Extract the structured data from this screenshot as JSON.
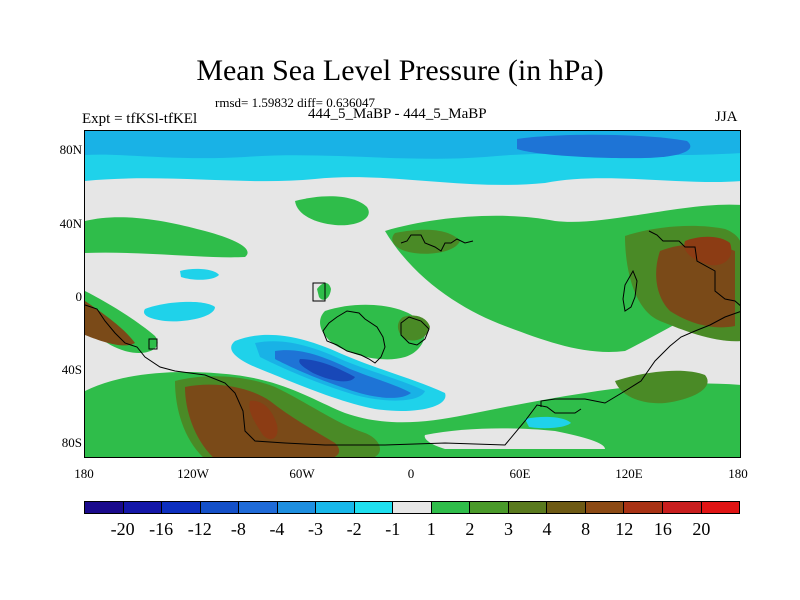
{
  "plot": {
    "title": "Mean Sea Level Pressure (in hPa)",
    "stats": "rmsd= 1.59832 diff= 0.636047",
    "experiment": "Expt = tfKSl-tfKEl",
    "runs": "444_5_MaBP - 444_5_MaBP",
    "season": "JJA"
  },
  "axes": {
    "y_labels": [
      "80N",
      "40N",
      "0",
      "40S",
      "80S"
    ],
    "x_labels": [
      "180",
      "120W",
      "60W",
      "0",
      "60E",
      "120E",
      "180"
    ]
  },
  "colorbar": {
    "labels": [
      "-20",
      "-16",
      "-12",
      "-8",
      "-4",
      "-3",
      "-2",
      "-1",
      "1",
      "2",
      "3",
      "4",
      "8",
      "12",
      "16",
      "20"
    ],
    "colors": [
      "#1a0a8c",
      "#1417a8",
      "#0d2fbf",
      "#1450c8",
      "#1f6bd8",
      "#1e8fe0",
      "#18b8ea",
      "#1fe0f0",
      "#e6e6e6",
      "#2fbd4a",
      "#4a9a2a",
      "#5a7a1e",
      "#6e5a14",
      "#8c4a14",
      "#a83214",
      "#c81e1e",
      "#e01414"
    ]
  },
  "colors": {
    "background": "#e6e6e6",
    "green": "#2fbd4a",
    "olive": "#4a8a26",
    "brown": "#7a4a18",
    "darkbrown": "#8c3c14",
    "lightcyan": "#1fd2ea",
    "cyan": "#19b2e6",
    "blue": "#1e74d6",
    "deepblue": "#1848b8"
  }
}
